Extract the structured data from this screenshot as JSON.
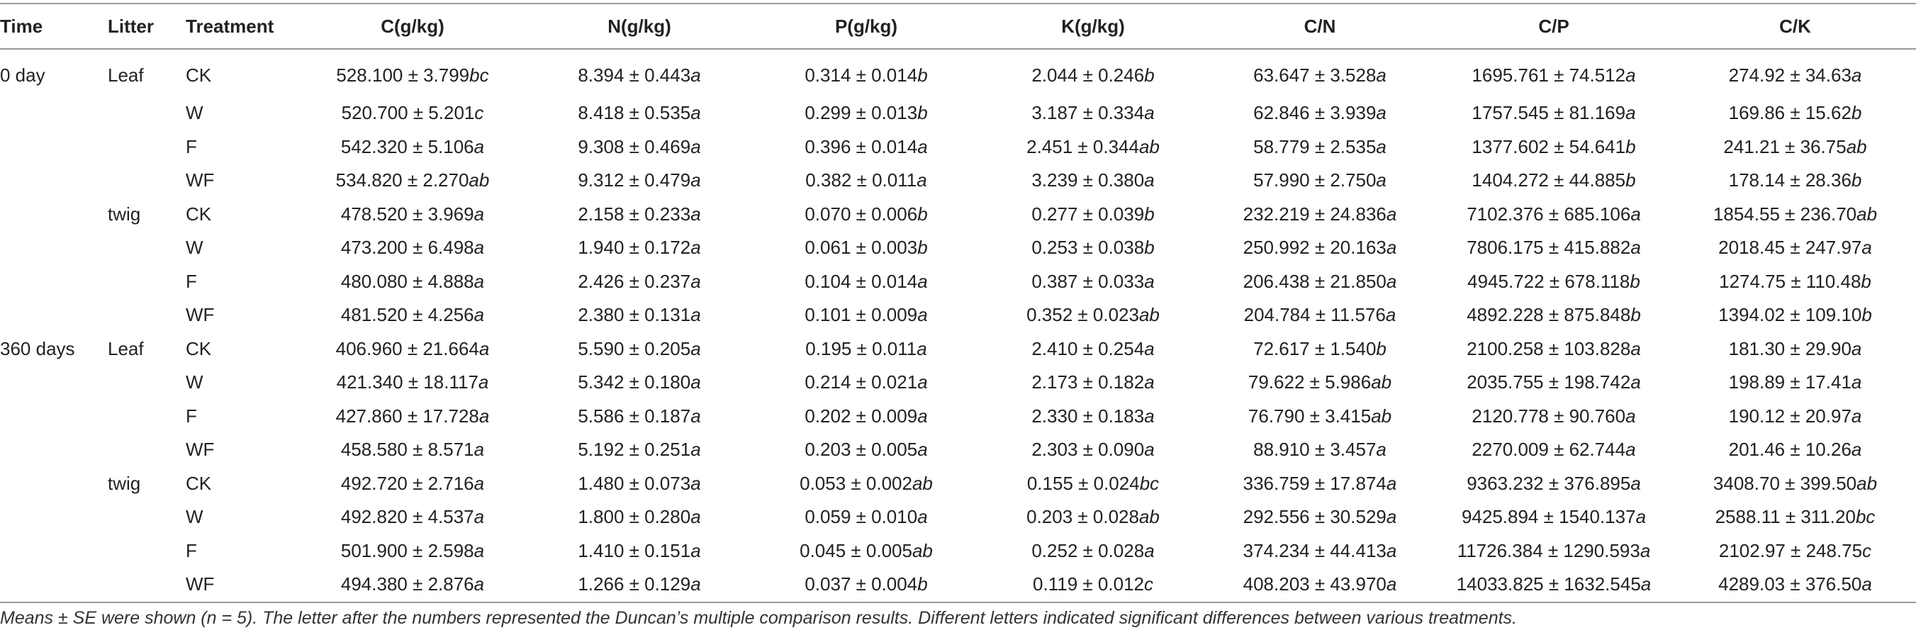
{
  "headers": [
    "Time",
    "Litter",
    "Treatment",
    "C(g/kg)",
    "N(g/kg)",
    "P(g/kg)",
    "K(g/kg)",
    "C/N",
    "C/P",
    "C/K"
  ],
  "rows": [
    {
      "time": "0 day",
      "litter": "Leaf",
      "treatment": "CK",
      "cells": [
        [
          "528.100 ± 3.799",
          "bc"
        ],
        [
          "8.394 ± 0.443",
          "a"
        ],
        [
          "0.314 ± 0.014",
          "b"
        ],
        [
          "2.044 ± 0.246",
          "b"
        ],
        [
          "63.647 ± 3.528",
          "a"
        ],
        [
          "1695.761 ± 74.512",
          "a"
        ],
        [
          "274.92 ± 34.63",
          "a"
        ]
      ]
    },
    {
      "time": "",
      "litter": "",
      "treatment": "W",
      "cells": [
        [
          "520.700 ± 5.201",
          "c"
        ],
        [
          "8.418 ± 0.535",
          "a"
        ],
        [
          "0.299 ± 0.013",
          "b"
        ],
        [
          "3.187 ± 0.334",
          "a"
        ],
        [
          "62.846 ± 3.939",
          "a"
        ],
        [
          "1757.545 ± 81.169",
          "a"
        ],
        [
          "169.86 ± 15.62",
          "b"
        ]
      ]
    },
    {
      "time": "",
      "litter": "",
      "treatment": "F",
      "cells": [
        [
          "542.320 ± 5.106",
          "a"
        ],
        [
          "9.308 ± 0.469",
          "a"
        ],
        [
          "0.396 ± 0.014",
          "a"
        ],
        [
          "2.451 ± 0.344",
          "ab"
        ],
        [
          "58.779 ± 2.535",
          "a"
        ],
        [
          "1377.602 ± 54.641",
          "b"
        ],
        [
          "241.21 ± 36.75",
          "ab"
        ]
      ]
    },
    {
      "time": "",
      "litter": "",
      "treatment": "WF",
      "cells": [
        [
          "534.820 ± 2.270",
          "ab"
        ],
        [
          "9.312 ± 0.479",
          "a"
        ],
        [
          "0.382 ± 0.011",
          "a"
        ],
        [
          "3.239 ± 0.380",
          "a"
        ],
        [
          "57.990 ± 2.750",
          "a"
        ],
        [
          "1404.272 ± 44.885",
          "b"
        ],
        [
          "178.14 ± 28.36",
          "b"
        ]
      ]
    },
    {
      "time": "",
      "litter": "twig",
      "treatment": "CK",
      "cells": [
        [
          "478.520 ± 3.969",
          "a"
        ],
        [
          "2.158 ± 0.233",
          "a"
        ],
        [
          "0.070 ± 0.006",
          "b"
        ],
        [
          "0.277 ± 0.039",
          "b"
        ],
        [
          "232.219 ± 24.836",
          "a"
        ],
        [
          "7102.376 ± 685.106",
          "a"
        ],
        [
          "1854.55 ± 236.70",
          "ab"
        ]
      ]
    },
    {
      "time": "",
      "litter": "",
      "treatment": "W",
      "cells": [
        [
          "473.200 ± 6.498",
          "a"
        ],
        [
          "1.940 ± 0.172",
          "a"
        ],
        [
          "0.061 ± 0.003",
          "b"
        ],
        [
          "0.253 ± 0.038",
          "b"
        ],
        [
          "250.992 ± 20.163",
          "a"
        ],
        [
          "7806.175 ± 415.882",
          "a"
        ],
        [
          "2018.45 ± 247.97",
          "a"
        ]
      ]
    },
    {
      "time": "",
      "litter": "",
      "treatment": "F",
      "cells": [
        [
          "480.080 ± 4.888",
          "a"
        ],
        [
          "2.426 ± 0.237",
          "a"
        ],
        [
          "0.104 ± 0.014",
          "a"
        ],
        [
          "0.387 ± 0.033",
          "a"
        ],
        [
          "206.438 ± 21.850",
          "a"
        ],
        [
          "4945.722 ± 678.118",
          "b"
        ],
        [
          "1274.75 ± 110.48",
          "b"
        ]
      ]
    },
    {
      "time": "",
      "litter": "",
      "treatment": "WF",
      "cells": [
        [
          "481.520 ± 4.256",
          "a"
        ],
        [
          "2.380 ± 0.131",
          "a"
        ],
        [
          "0.101 ± 0.009",
          "a"
        ],
        [
          "0.352 ± 0.023",
          "ab"
        ],
        [
          "204.784 ± 11.576",
          "a"
        ],
        [
          "4892.228 ± 875.848",
          "b"
        ],
        [
          "1394.02 ± 109.10",
          "b"
        ]
      ]
    },
    {
      "time": "360 days",
      "litter": "Leaf",
      "treatment": "CK",
      "cells": [
        [
          "406.960 ± 21.664",
          "a"
        ],
        [
          "5.590 ± 0.205",
          "a"
        ],
        [
          "0.195 ± 0.011",
          "a"
        ],
        [
          "2.410 ± 0.254",
          "a"
        ],
        [
          "72.617 ± 1.540",
          "b"
        ],
        [
          "2100.258 ± 103.828",
          "a"
        ],
        [
          "181.30 ± 29.90",
          "a"
        ]
      ]
    },
    {
      "time": "",
      "litter": "",
      "treatment": "W",
      "cells": [
        [
          "421.340 ± 18.117",
          "a"
        ],
        [
          "5.342 ± 0.180",
          "a"
        ],
        [
          "0.214 ± 0.021",
          "a"
        ],
        [
          "2.173 ± 0.182",
          "a"
        ],
        [
          "79.622 ± 5.986",
          "ab"
        ],
        [
          "2035.755 ± 198.742",
          "a"
        ],
        [
          "198.89 ± 17.41",
          "a"
        ]
      ]
    },
    {
      "time": "",
      "litter": "",
      "treatment": "F",
      "cells": [
        [
          "427.860 ± 17.728",
          "a"
        ],
        [
          "5.586 ± 0.187",
          "a"
        ],
        [
          "0.202 ± 0.009",
          "a"
        ],
        [
          "2.330 ± 0.183",
          "a"
        ],
        [
          "76.790 ± 3.415",
          "ab"
        ],
        [
          "2120.778 ± 90.760",
          "a"
        ],
        [
          "190.12 ± 20.97",
          "a"
        ]
      ]
    },
    {
      "time": "",
      "litter": "",
      "treatment": "WF",
      "cells": [
        [
          "458.580 ± 8.571",
          "a"
        ],
        [
          "5.192 ± 0.251",
          "a"
        ],
        [
          "0.203 ± 0.005",
          "a"
        ],
        [
          "2.303 ± 0.090",
          "a"
        ],
        [
          "88.910 ± 3.457",
          "a"
        ],
        [
          "2270.009 ± 62.744",
          "a"
        ],
        [
          "201.46 ± 10.26",
          "a"
        ]
      ]
    },
    {
      "time": "",
      "litter": "twig",
      "treatment": "CK",
      "cells": [
        [
          "492.720 ± 2.716",
          "a"
        ],
        [
          "1.480 ± 0.073",
          "a"
        ],
        [
          "0.053 ± 0.002",
          "ab"
        ],
        [
          "0.155 ± 0.024",
          "bc"
        ],
        [
          "336.759 ± 17.874",
          "a"
        ],
        [
          "9363.232 ± 376.895",
          "a"
        ],
        [
          "3408.70 ± 399.50",
          "ab"
        ]
      ]
    },
    {
      "time": "",
      "litter": "",
      "treatment": "W",
      "cells": [
        [
          "492.820 ± 4.537",
          "a"
        ],
        [
          "1.800 ± 0.280",
          "a"
        ],
        [
          "0.059 ± 0.010",
          "a"
        ],
        [
          "0.203 ± 0.028",
          "ab"
        ],
        [
          "292.556 ± 30.529",
          "a"
        ],
        [
          "9425.894 ± 1540.137",
          "a"
        ],
        [
          "2588.11 ± 311.20",
          "bc"
        ]
      ]
    },
    {
      "time": "",
      "litter": "",
      "treatment": "F",
      "cells": [
        [
          "501.900 ± 2.598",
          "a"
        ],
        [
          "1.410 ± 0.151",
          "a"
        ],
        [
          "0.045 ± 0.005",
          "ab"
        ],
        [
          "0.252 ± 0.028",
          "a"
        ],
        [
          "374.234 ± 44.413",
          "a"
        ],
        [
          "11726.384 ± 1290.593",
          "a"
        ],
        [
          "2102.97 ± 248.75",
          "c"
        ]
      ]
    },
    {
      "time": "",
      "litter": "",
      "treatment": "WF",
      "cells": [
        [
          "494.380 ± 2.876",
          "a"
        ],
        [
          "1.266 ± 0.129",
          "a"
        ],
        [
          "0.037 ± 0.004",
          "b"
        ],
        [
          "0.119 ± 0.012",
          "c"
        ],
        [
          "408.203 ± 43.970",
          "a"
        ],
        [
          "14033.825 ± 1632.545",
          "a"
        ],
        [
          "4289.03 ± 376.50",
          "a"
        ]
      ]
    }
  ],
  "footnote": "Means ± SE were shown (n = 5). The letter after the numbers represented the Duncan’s multiple comparison results. Different letters indicated significant differences between various treatments."
}
